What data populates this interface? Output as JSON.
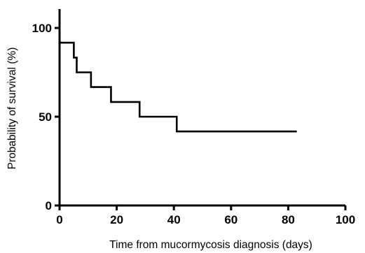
{
  "chart_data": {
    "type": "line",
    "title": "",
    "xlabel": "Time from mucormycosis diagnosis (days)",
    "ylabel": "Probability of survival (%)",
    "xlim": [
      0,
      100
    ],
    "ylim": [
      0,
      110
    ],
    "xticks": [
      0,
      20,
      40,
      60,
      80,
      100
    ],
    "yticks": [
      0,
      50,
      100
    ],
    "grid": false,
    "legend": "none",
    "step": true,
    "series": [
      {
        "x": [
          0,
          5,
          6,
          11,
          18,
          28,
          41,
          83
        ],
        "y": [
          91.7,
          83.3,
          75.0,
          66.7,
          58.3,
          50.0,
          41.7,
          41.7
        ]
      }
    ],
    "colors": {
      "line": "#000000",
      "axis": "#000000"
    }
  }
}
